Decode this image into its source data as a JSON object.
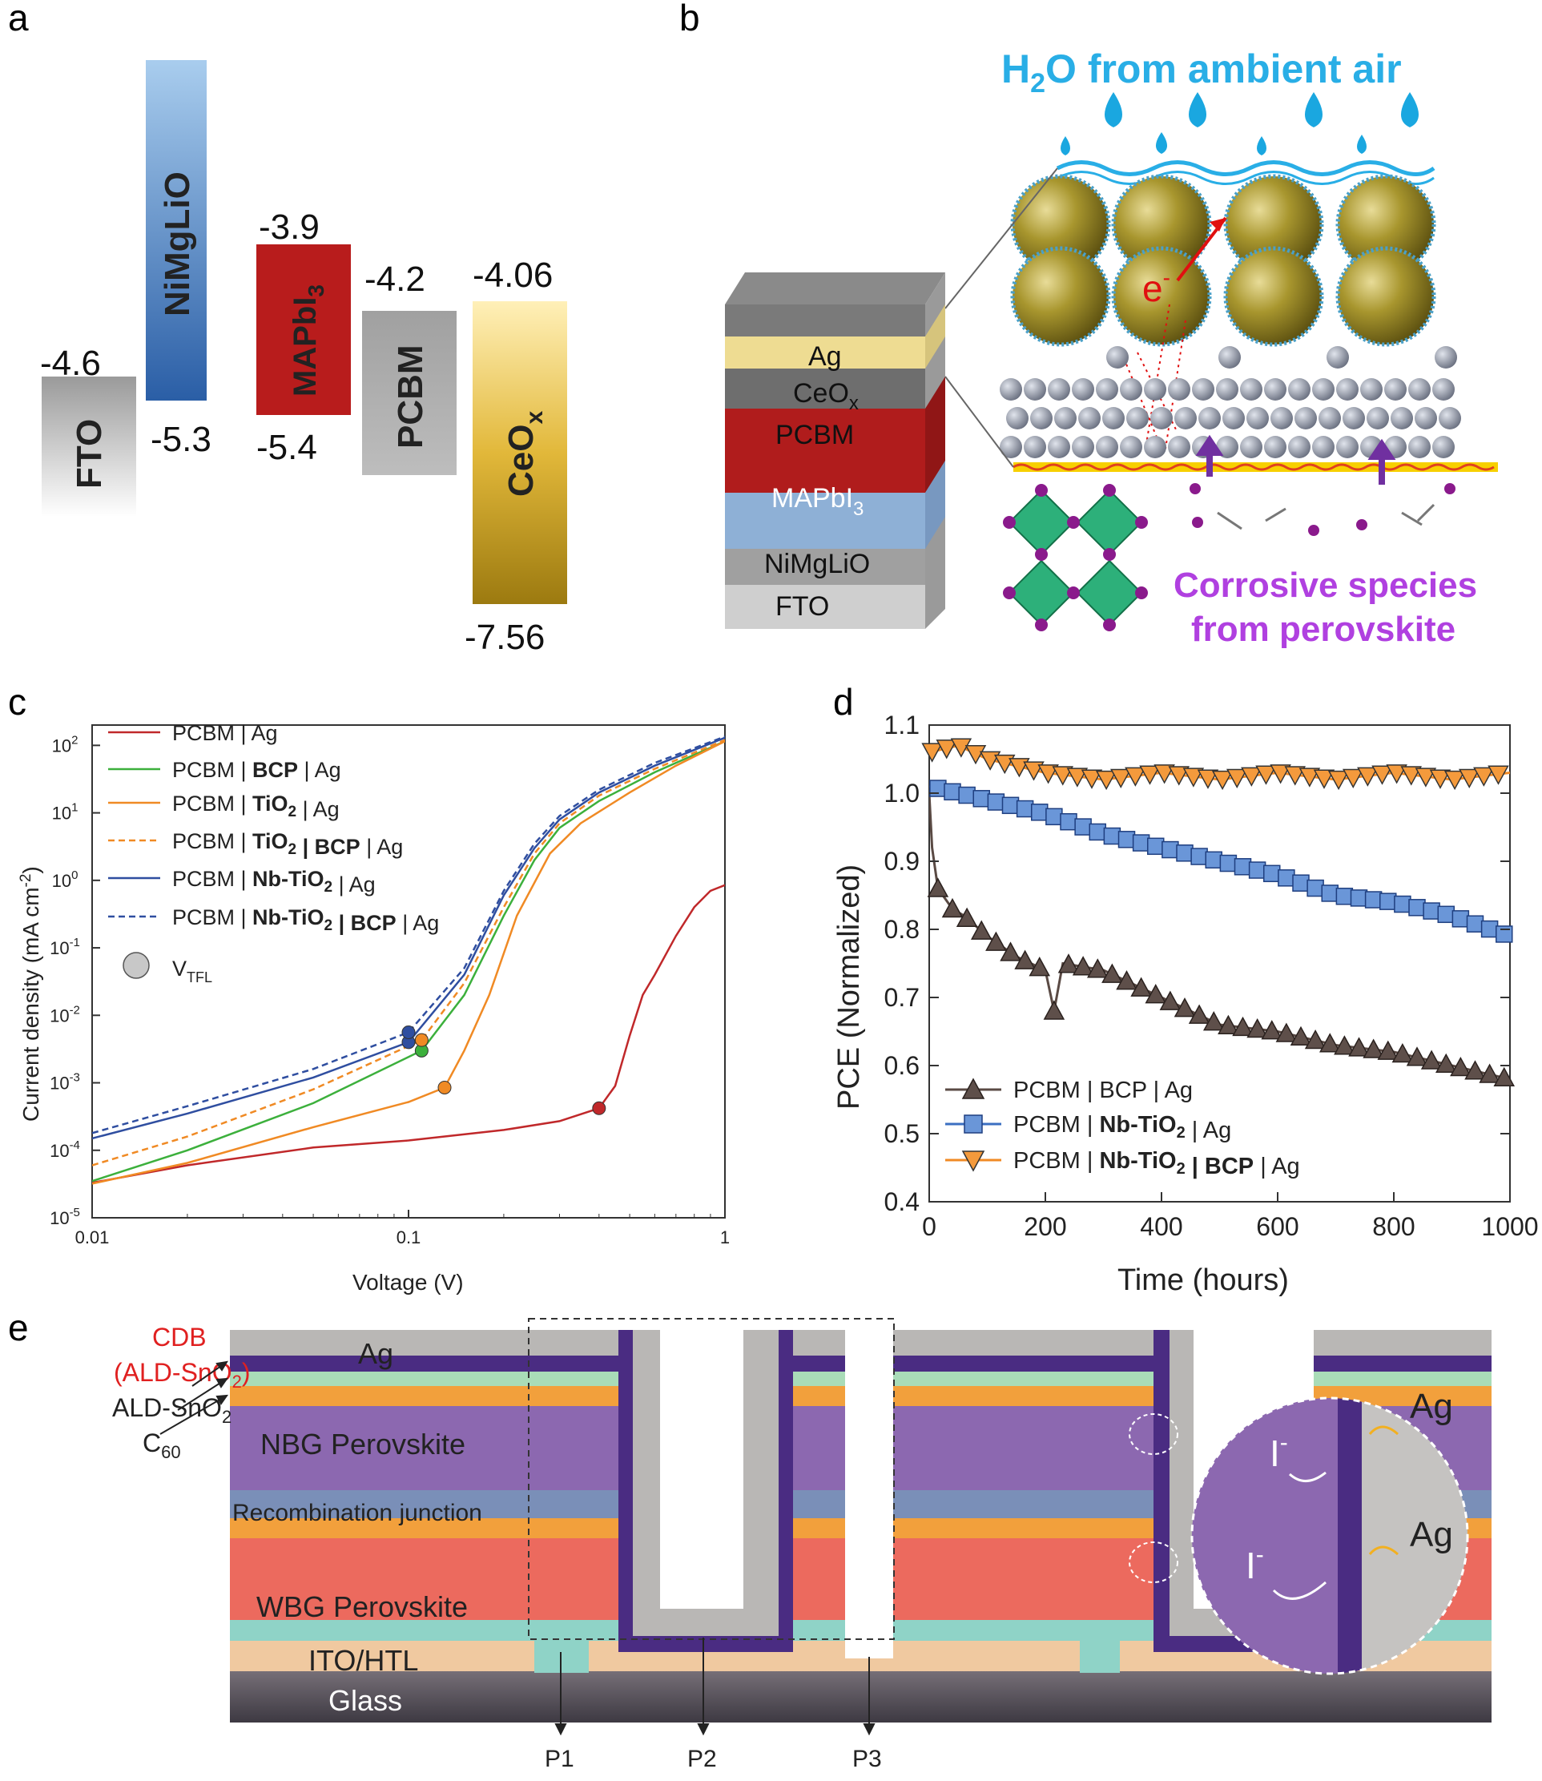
{
  "panels": {
    "a": "a",
    "b": "b",
    "c": "c",
    "d": "d",
    "e": "e"
  },
  "panel_a": {
    "blocks": [
      {
        "name": "FTO",
        "top": "-4.6"
      },
      {
        "name": "NiMgLiO",
        "bottom": "-5.3"
      },
      {
        "name": "MAPbI",
        "sub": "3",
        "top": "-3.9",
        "bottom": "-5.4"
      },
      {
        "name": "PCBM",
        "top": "-4.2"
      },
      {
        "name": "CeO",
        "sub": "x",
        "top": "-4.06",
        "bottom": "-7.56"
      }
    ],
    "colors": {
      "fto": "#b0b0b0",
      "nimgli": "#3a6fb0",
      "mapbi": "#b81c1c",
      "pcbm": "#a8a8a8",
      "ceo": "#c8a018"
    }
  },
  "panel_b": {
    "title_pre": "H",
    "title_sub": "2",
    "title_post": "O from ambient air",
    "corrosive_line1": "Corrosive species",
    "corrosive_line2": "from perovskite",
    "electron": "e",
    "electron_sup": "-",
    "stack": [
      "Ag",
      "CeO",
      "PCBM",
      "MAPbI",
      "NiMgLiO",
      "FTO"
    ],
    "stack_subs": {
      "CeO": "x",
      "MAPbI": "3"
    }
  },
  "chart_data": [
    {
      "type": "line",
      "id": "c",
      "scale": "log-log",
      "xlabel": "Voltage (V)",
      "ylabel_pre": "Current density (mA cm",
      "ylabel_sup": "-2",
      "ylabel_post": ")",
      "xlim": [
        0.01,
        1
      ],
      "ylim": [
        1e-05,
        200
      ],
      "x_ticks": [
        "0.01",
        "0.1",
        "1"
      ],
      "y_ticks": [
        {
          "b": "10",
          "e": "-5"
        },
        {
          "b": "10",
          "e": "-4"
        },
        {
          "b": "10",
          "e": "-3"
        },
        {
          "b": "10",
          "e": "-2"
        },
        {
          "b": "10",
          "e": "-1"
        },
        {
          "b": "10",
          "e": "0"
        },
        {
          "b": "10",
          "e": "1"
        },
        {
          "b": "10",
          "e": "2"
        }
      ],
      "series": [
        {
          "name": "PCBM | Ag",
          "label_parts": [
            {
              "t": "PCBM | Ag"
            }
          ],
          "color": "#c0282a",
          "dash": false,
          "points": [
            [
              0.01,
              3.3e-05
            ],
            [
              0.02,
              6e-05
            ],
            [
              0.05,
              0.00011
            ],
            [
              0.1,
              0.00014
            ],
            [
              0.2,
              0.0002
            ],
            [
              0.3,
              0.00027
            ],
            [
              0.4,
              0.00042
            ],
            [
              0.45,
              0.0009
            ],
            [
              0.5,
              0.005
            ],
            [
              0.55,
              0.02
            ],
            [
              0.6,
              0.04
            ],
            [
              0.7,
              0.15
            ],
            [
              0.8,
              0.4
            ],
            [
              0.9,
              0.7
            ],
            [
              1,
              0.85
            ]
          ],
          "vtfl": [
            0.4,
            0.00042
          ]
        },
        {
          "name": "PCBM | BCP | Ag",
          "label_parts": [
            {
              "t": "PCBM | "
            },
            {
              "t": "BCP",
              "b": true
            },
            {
              "t": " | Ag"
            }
          ],
          "color": "#3cb03c",
          "dash": false,
          "points": [
            [
              0.01,
              3.5e-05
            ],
            [
              0.02,
              0.0001
            ],
            [
              0.05,
              0.0005
            ],
            [
              0.11,
              0.003
            ],
            [
              0.15,
              0.02
            ],
            [
              0.2,
              0.3
            ],
            [
              0.25,
              2
            ],
            [
              0.3,
              6
            ],
            [
              0.4,
              15
            ],
            [
              0.6,
              40
            ],
            [
              1,
              115
            ]
          ],
          "vtfl": [
            0.11,
            0.003
          ]
        },
        {
          "name": "PCBM | TiO2 | Ag",
          "label_parts": [
            {
              "t": "PCBM | "
            },
            {
              "t": "TiO",
              "b": true
            },
            {
              "t": "2",
              "b": true,
              "sub": true
            },
            {
              "t": " | Ag"
            }
          ],
          "color": "#f08a24",
          "dash": false,
          "points": [
            [
              0.01,
              3.2e-05
            ],
            [
              0.02,
              6.5e-05
            ],
            [
              0.05,
              0.00022
            ],
            [
              0.1,
              0.00052
            ],
            [
              0.13,
              0.00085
            ],
            [
              0.15,
              0.003
            ],
            [
              0.18,
              0.02
            ],
            [
              0.22,
              0.3
            ],
            [
              0.28,
              2.5
            ],
            [
              0.35,
              7
            ],
            [
              0.5,
              20
            ],
            [
              0.7,
              50
            ],
            [
              1,
              115
            ]
          ],
          "vtfl": [
            0.13,
            0.00085
          ]
        },
        {
          "name": "PCBM | TiO2 | BCP | Ag",
          "label_parts": [
            {
              "t": "PCBM | "
            },
            {
              "t": "TiO",
              "b": true
            },
            {
              "t": "2",
              "b": true,
              "sub": true
            },
            {
              "t": " | BCP",
              "b": true
            },
            {
              "t": " | Ag"
            }
          ],
          "color": "#f08a24",
          "dash": true,
          "points": [
            [
              0.01,
              6e-05
            ],
            [
              0.02,
              0.00016
            ],
            [
              0.05,
              0.0008
            ],
            [
              0.11,
              0.0043
            ],
            [
              0.15,
              0.03
            ],
            [
              0.2,
              0.4
            ],
            [
              0.25,
              2.5
            ],
            [
              0.3,
              7
            ],
            [
              0.4,
              18
            ],
            [
              0.6,
              45
            ],
            [
              1,
              120
            ]
          ],
          "vtfl": [
            0.11,
            0.0043
          ]
        },
        {
          "name": "PCBM | Nb-TiO2 | Ag",
          "label_parts": [
            {
              "t": "PCBM | "
            },
            {
              "t": "Nb-TiO",
              "b": true
            },
            {
              "t": "2",
              "b": true,
              "sub": true
            },
            {
              "t": " | Ag"
            }
          ],
          "color": "#2f4ea0",
          "dash": false,
          "points": [
            [
              0.01,
              0.00015
            ],
            [
              0.02,
              0.00035
            ],
            [
              0.05,
              0.0012
            ],
            [
              0.1,
              0.004
            ],
            [
              0.15,
              0.04
            ],
            [
              0.2,
              0.6
            ],
            [
              0.25,
              3
            ],
            [
              0.3,
              8
            ],
            [
              0.4,
              20
            ],
            [
              0.6,
              50
            ],
            [
              1,
              130
            ]
          ],
          "vtfl": [
            0.1,
            0.004
          ]
        },
        {
          "name": "PCBM | Nb-TiO2 | BCP | Ag",
          "label_parts": [
            {
              "t": "PCBM | "
            },
            {
              "t": "Nb-TiO",
              "b": true
            },
            {
              "t": "2",
              "b": true,
              "sub": true
            },
            {
              "t": " | BCP",
              "b": true
            },
            {
              "t": " | Ag"
            }
          ],
          "color": "#2f4ea0",
          "dash": true,
          "points": [
            [
              0.01,
              0.00018
            ],
            [
              0.02,
              0.00045
            ],
            [
              0.05,
              0.0016
            ],
            [
              0.1,
              0.0056
            ],
            [
              0.15,
              0.05
            ],
            [
              0.2,
              0.7
            ],
            [
              0.25,
              3.5
            ],
            [
              0.3,
              9
            ],
            [
              0.4,
              22
            ],
            [
              0.6,
              55
            ],
            [
              1,
              135
            ]
          ],
          "vtfl": [
            0.1,
            0.0056
          ]
        }
      ],
      "vtfl_label": "V",
      "vtfl_sub": "TFL"
    },
    {
      "type": "line",
      "id": "d",
      "xlabel": "Time (hours)",
      "ylabel": "PCE (Normalized)",
      "xlim": [
        0,
        1000
      ],
      "ylim": [
        0.4,
        1.1
      ],
      "x_ticks": [
        "0",
        "200",
        "400",
        "600",
        "800",
        "1000"
      ],
      "y_ticks": [
        "0.4",
        "0.5",
        "0.6",
        "0.7",
        "0.8",
        "0.9",
        "1.0",
        "1.1"
      ],
      "series": [
        {
          "name": "PCBM | BCP | Ag",
          "label_parts": [
            {
              "t": "PCBM | BCP | Ag"
            }
          ],
          "color": "#5a4a44",
          "marker": "triangle-up",
          "marker_fill": "#5e4f4a",
          "points": [
            [
              0,
              1.0
            ],
            [
              5,
              0.92
            ],
            [
              15,
              0.86
            ],
            [
              40,
              0.83
            ],
            [
              60,
              0.82
            ],
            [
              100,
              0.79
            ],
            [
              150,
              0.76
            ],
            [
              200,
              0.74
            ],
            [
              215,
              0.68
            ],
            [
              230,
              0.75
            ],
            [
              300,
              0.74
            ],
            [
              400,
              0.7
            ],
            [
              500,
              0.66
            ],
            [
              600,
              0.65
            ],
            [
              700,
              0.63
            ],
            [
              800,
              0.62
            ],
            [
              900,
              0.6
            ],
            [
              1000,
              0.58
            ]
          ]
        },
        {
          "name": "PCBM | Nb-TiO2 | Ag",
          "label_parts": [
            {
              "t": "PCBM | "
            },
            {
              "t": "Nb-TiO",
              "b": true
            },
            {
              "t": "2",
              "b": true,
              "sub": true
            },
            {
              "t": " | Ag"
            }
          ],
          "color": "#3b6fc2",
          "marker": "square",
          "marker_fill": "#6a96d8",
          "points": [
            [
              0,
              1.01
            ],
            [
              100,
              0.99
            ],
            [
              200,
              0.97
            ],
            [
              300,
              0.94
            ],
            [
              400,
              0.92
            ],
            [
              500,
              0.9
            ],
            [
              600,
              0.88
            ],
            [
              700,
              0.85
            ],
            [
              800,
              0.84
            ],
            [
              900,
              0.82
            ],
            [
              1000,
              0.79
            ]
          ]
        },
        {
          "name": "PCBM | Nb-TiO2 | BCP | Ag",
          "label_parts": [
            {
              "t": "PCBM | "
            },
            {
              "t": "Nb-TiO",
              "b": true
            },
            {
              "t": "2",
              "b": true,
              "sub": true
            },
            {
              "t": " | BCP",
              "b": true
            },
            {
              "t": " | Ag"
            }
          ],
          "color": "#f08a24",
          "marker": "triangle-down",
          "marker_fill": "#f49a3c",
          "points": [
            [
              0,
              1.06
            ],
            [
              50,
              1.07
            ],
            [
              100,
              1.05
            ],
            [
              200,
              1.03
            ],
            [
              300,
              1.02
            ],
            [
              400,
              1.03
            ],
            [
              500,
              1.02
            ],
            [
              600,
              1.03
            ],
            [
              700,
              1.02
            ],
            [
              800,
              1.03
            ],
            [
              900,
              1.02
            ],
            [
              1000,
              1.03
            ]
          ]
        }
      ]
    }
  ],
  "panel_e": {
    "labels": {
      "cdb_line1": "CDB",
      "cdb_line2": "(ALD-SnO",
      "cdb_sub": "2",
      "cdb_close": ")",
      "ald": "ALD-SnO",
      "ald_sub": "2",
      "c60": "C",
      "c60_sub": "60",
      "ag": "Ag",
      "nbg": "NBG Perovskite",
      "recomb": "Recombination junction",
      "wbg": "WBG Perovskite",
      "ito": "ITO/HTL",
      "glass": "Glass",
      "p1": "P1",
      "p2": "P2",
      "p3": "P3",
      "ion": "I",
      "ion_sup": "-",
      "zoom_ag": "Ag"
    },
    "colors": {
      "ag": "#b9b7b5",
      "cdb": "#4a2c82",
      "ald": "#a9dcb8",
      "c60": "#f2a03c",
      "nbg": "#8c68b0",
      "recomb": "#7a8fb8",
      "wbg": "#ec6a5e",
      "ito": "#8fd3c7",
      "glassTop": "#f0c9a0",
      "glass": "#5a5560"
    }
  }
}
